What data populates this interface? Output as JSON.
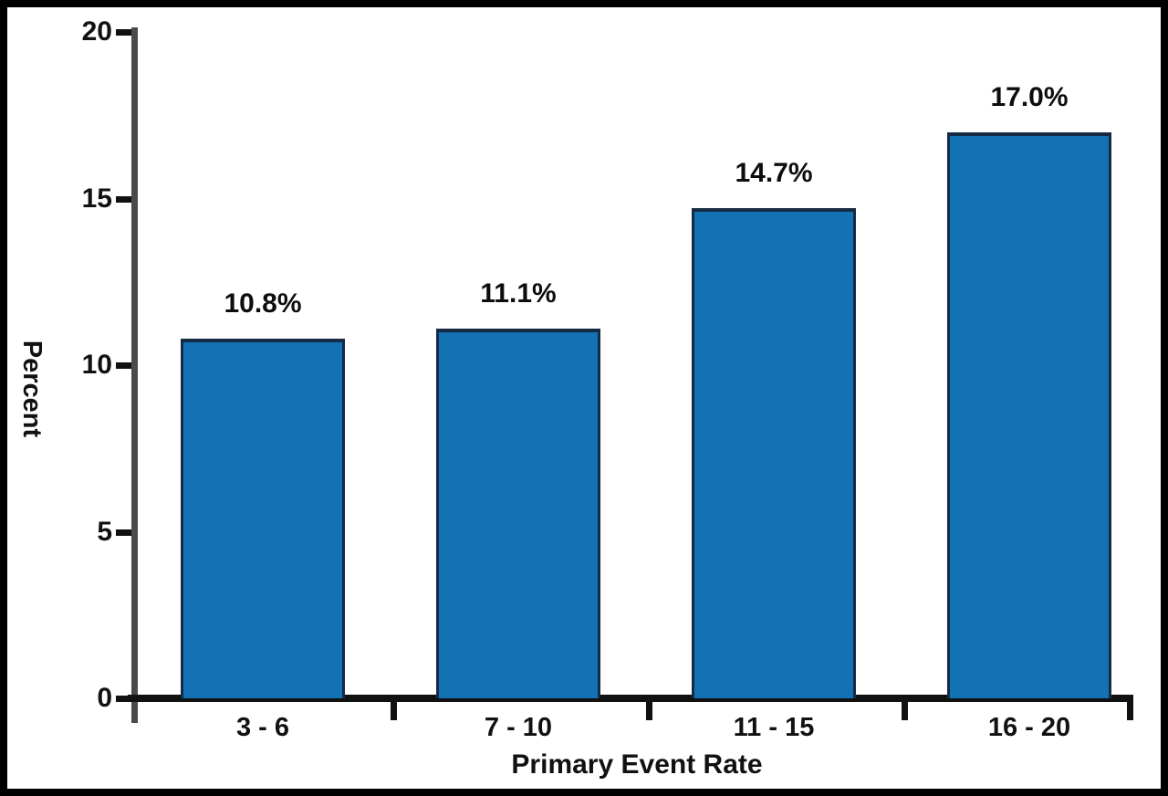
{
  "chart_data": {
    "type": "bar",
    "title": "",
    "ylabel": "Percent",
    "xlabel": "Primary Event Rate",
    "categories": [
      "3 - 6",
      "7 - 10",
      "11 - 15",
      "16 - 20"
    ],
    "values": [
      10.8,
      11.1,
      14.7,
      17.0
    ],
    "bar_labels": [
      "10.8%",
      "11.1%",
      "14.7%",
      "17.0%"
    ],
    "ylim": [
      0,
      20
    ],
    "yticks": [
      0,
      5,
      10,
      15,
      20
    ],
    "grid": "off",
    "legend": "none",
    "bar_color": "#1272B4",
    "bar_border_color": "#152B45",
    "x_axis_color": "#111111",
    "y_axis_color": "#4A4A4A",
    "text_color": "#111111",
    "background": "#FFFFFF",
    "frame_border_color": "#000000"
  }
}
